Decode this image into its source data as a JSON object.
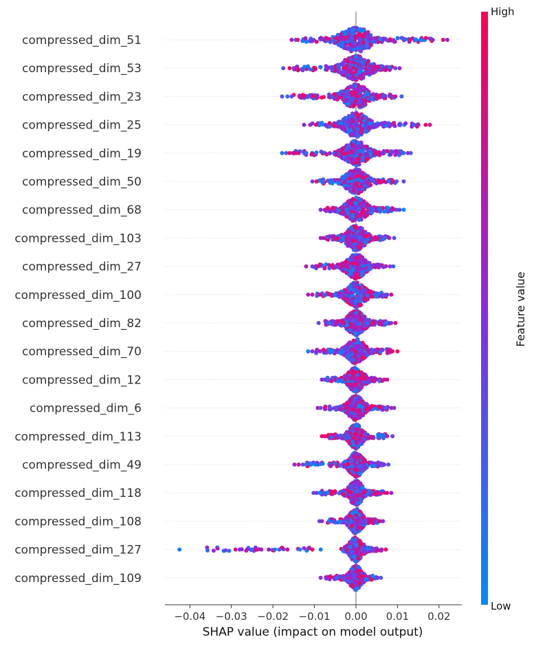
{
  "chart_data": {
    "type": "scatter",
    "subtype": "shap-beeswarm",
    "xlabel": "SHAP value (impact on model output)",
    "xlim": [
      -0.046,
      0.0255
    ],
    "xticks": [
      {
        "value": -0.04,
        "label": "−0.04"
      },
      {
        "value": -0.03,
        "label": "−0.03"
      },
      {
        "value": -0.02,
        "label": "−0.02"
      },
      {
        "value": -0.01,
        "label": "−0.01"
      },
      {
        "value": 0.0,
        "label": "0.00"
      },
      {
        "value": 0.01,
        "label": "0.01"
      },
      {
        "value": 0.02,
        "label": "0.02"
      }
    ],
    "colorbar": {
      "label": "Feature value",
      "high_label": "High",
      "low_label": "Low",
      "high_color": "#ff0052",
      "low_color": "#008bfb"
    },
    "features": [
      {
        "name": "compressed_dim_51",
        "min": -0.0155,
        "max": 0.022,
        "core": 0.0035,
        "tails": [
          -0.0155,
          -0.0145,
          -0.014,
          0.013,
          0.0145,
          0.0155,
          0.0185,
          0.021,
          0.022
        ]
      },
      {
        "name": "compressed_dim_53",
        "min": -0.0175,
        "max": 0.0105,
        "core": 0.0032,
        "tails": [
          -0.0175,
          -0.016,
          -0.015,
          -0.0145,
          0.0095,
          0.0105
        ]
      },
      {
        "name": "compressed_dim_23",
        "min": -0.0178,
        "max": 0.011,
        "core": 0.0028,
        "tails": [
          -0.0178,
          -0.0165,
          -0.0155,
          -0.0135,
          -0.0125,
          0.0095,
          0.011
        ]
      },
      {
        "name": "compressed_dim_25",
        "min": -0.0125,
        "max": 0.0178,
        "core": 0.0026,
        "tails": [
          -0.0125,
          -0.011,
          0.014,
          0.015,
          0.0168,
          0.0178
        ]
      },
      {
        "name": "compressed_dim_19",
        "min": -0.0178,
        "max": 0.0132,
        "core": 0.0026,
        "tails": [
          -0.0178,
          -0.0168,
          -0.016,
          -0.0152,
          -0.0145,
          -0.0138,
          -0.0125,
          0.0115,
          0.0125,
          0.0132
        ]
      },
      {
        "name": "compressed_dim_50",
        "min": -0.0105,
        "max": 0.0115,
        "core": 0.0024,
        "tails": [
          -0.0105,
          -0.0095,
          0.009,
          0.0098,
          0.0115
        ]
      },
      {
        "name": "compressed_dim_68",
        "min": -0.0085,
        "max": 0.0115,
        "core": 0.0024,
        "tails": [
          -0.0085,
          -0.0075,
          0.0098,
          0.0105,
          0.0115
        ]
      },
      {
        "name": "compressed_dim_103",
        "min": -0.0085,
        "max": 0.0092,
        "core": 0.0022,
        "tails": [
          -0.0085,
          -0.0078,
          0.008,
          0.0092
        ]
      },
      {
        "name": "compressed_dim_27",
        "min": -0.012,
        "max": 0.009,
        "core": 0.0022,
        "tails": [
          -0.012,
          -0.0105,
          -0.0095,
          0.0082,
          0.009
        ]
      },
      {
        "name": "compressed_dim_100",
        "min": -0.0115,
        "max": 0.0085,
        "core": 0.0022,
        "tails": [
          -0.0115,
          -0.0105,
          0.0075,
          0.0085
        ]
      },
      {
        "name": "compressed_dim_82",
        "min": -0.009,
        "max": 0.0095,
        "core": 0.002,
        "tails": [
          -0.009,
          -0.0065,
          0.0085,
          0.0095
        ]
      },
      {
        "name": "compressed_dim_70",
        "min": -0.0115,
        "max": 0.01,
        "core": 0.002,
        "tails": [
          -0.0115,
          -0.0105,
          -0.0095,
          0.0088,
          0.01
        ]
      },
      {
        "name": "compressed_dim_12",
        "min": -0.0082,
        "max": 0.0075,
        "core": 0.0018,
        "tails": [
          -0.0082,
          -0.0075,
          0.0068,
          0.0075
        ]
      },
      {
        "name": "compressed_dim_6",
        "min": -0.0092,
        "max": 0.0092,
        "core": 0.0018,
        "tails": [
          -0.0092,
          -0.0085,
          0.0072,
          0.0085,
          0.0092
        ]
      },
      {
        "name": "compressed_dim_113",
        "min": -0.0082,
        "max": 0.0088,
        "core": 0.0016,
        "tails": [
          -0.0082,
          -0.0075,
          0.0075,
          0.0088
        ]
      },
      {
        "name": "compressed_dim_49",
        "min": -0.0148,
        "max": 0.0078,
        "core": 0.0016,
        "tails": [
          -0.0148,
          -0.0138,
          -0.0128,
          -0.012,
          -0.0108,
          -0.0098,
          0.0068,
          0.0078
        ]
      },
      {
        "name": "compressed_dim_118",
        "min": -0.0102,
        "max": 0.0085,
        "core": 0.0016,
        "tails": [
          -0.0102,
          -0.0095,
          -0.0088,
          -0.0068,
          0.0075,
          0.0085
        ]
      },
      {
        "name": "compressed_dim_108",
        "min": -0.0088,
        "max": 0.0065,
        "core": 0.0015,
        "tails": [
          -0.0088,
          -0.0082,
          -0.0065,
          0.0058,
          0.0065
        ]
      },
      {
        "name": "compressed_dim_127",
        "min": -0.0425,
        "max": 0.0072,
        "core": 0.0015,
        "tails": [
          -0.0425,
          -0.029,
          -0.028,
          -0.0262,
          -0.025,
          -0.0242,
          -0.0228,
          -0.021,
          -0.0195,
          -0.0185,
          -0.0165,
          -0.0135,
          -0.0105,
          -0.0085,
          0.0062,
          0.0072
        ]
      },
      {
        "name": "compressed_dim_109",
        "min": -0.0085,
        "max": 0.006,
        "core": 0.0014,
        "tails": [
          -0.0085,
          -0.0072,
          0.0052,
          0.006
        ]
      }
    ]
  }
}
